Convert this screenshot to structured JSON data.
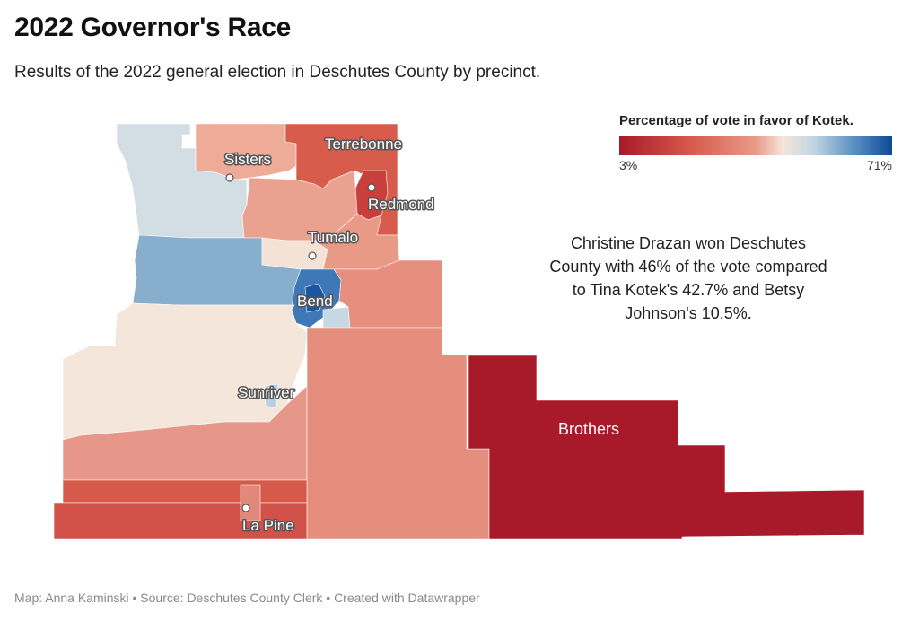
{
  "header": {
    "title": "2022 Governor's Race",
    "subtitle": "Results of the 2022 general election in Deschutes County by precinct."
  },
  "legend": {
    "title": "Percentage of vote in favor of Kotek.",
    "min_label": "3%",
    "max_label": "71%",
    "colors": [
      "#a8192a",
      "#d7574a",
      "#e99b86",
      "#f4e6da",
      "#bdd3e2",
      "#5b90c2",
      "#0d4a99"
    ]
  },
  "annotation": {
    "text": "Christine Drazan won Deschutes County with 46% of the vote compared to Tina Kotek's 42.7% and Betsy Johnson's 10.5%."
  },
  "places": {
    "sisters": "Sisters",
    "terrebonne": "Terrebonne",
    "redmond": "Redmond",
    "tumalo": "Tumalo",
    "bend": "Bend",
    "sunriver": "Sunriver",
    "la_pine": "La Pine",
    "brothers": "Brothers"
  },
  "footer": {
    "credit": "Map: Anna Kaminski • Source: Deschutes County Clerk • Created with Datawrapper"
  }
}
